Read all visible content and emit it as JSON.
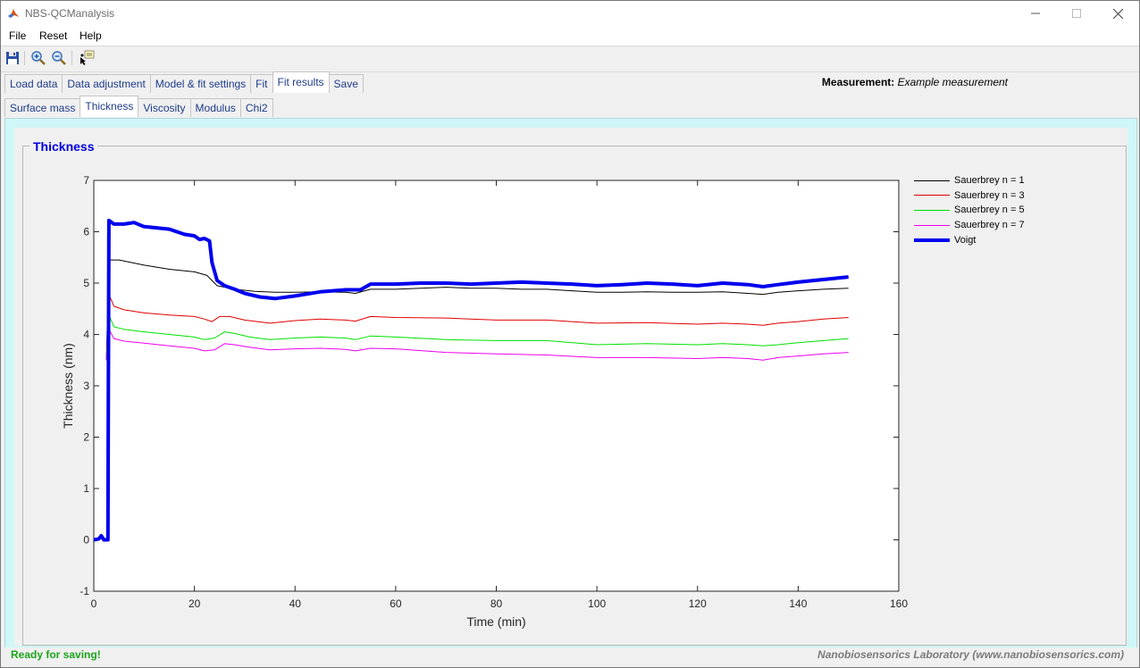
{
  "window": {
    "title": "NBS-QCManalysis",
    "controls": [
      "minimize",
      "maximize",
      "close"
    ]
  },
  "menu": {
    "items": [
      "File",
      "Reset",
      "Help"
    ]
  },
  "toolbar": {
    "buttons": [
      "save-icon",
      "zoom-in-icon",
      "zoom-out-icon",
      "data-cursor-icon"
    ]
  },
  "main_tabs": [
    {
      "label": "Load data",
      "active": false
    },
    {
      "label": "Data adjustment",
      "active": false
    },
    {
      "label": "Model & fit settings",
      "active": false
    },
    {
      "label": "Fit",
      "active": false
    },
    {
      "label": "Fit results",
      "active": true
    },
    {
      "label": "Save",
      "active": false
    }
  ],
  "sub_tabs": [
    {
      "label": "Surface mass",
      "active": false
    },
    {
      "label": "Thickness",
      "active": true
    },
    {
      "label": "Viscosity",
      "active": false
    },
    {
      "label": "Modulus",
      "active": false
    },
    {
      "label": "Chi2",
      "active": false
    }
  ],
  "measurement": {
    "label": "Measurement:",
    "value": "Example measurement"
  },
  "panel": {
    "title": "Thickness"
  },
  "chart_data": {
    "type": "line",
    "xlabel": "Time (min)",
    "ylabel": "Thickness (nm)",
    "xlim": [
      0,
      160
    ],
    "ylim": [
      -1,
      7
    ],
    "xticks": [
      0,
      20,
      40,
      60,
      80,
      100,
      120,
      140,
      160
    ],
    "yticks": [
      -1,
      0,
      1,
      2,
      3,
      4,
      5,
      6,
      7
    ],
    "grid": false,
    "legend_position": "outside-right",
    "series": [
      {
        "name": "Sauerbrey n = 1",
        "color": "#000000",
        "width": 1,
        "points": [
          [
            2.5,
            3.5
          ],
          [
            3,
            5.45
          ],
          [
            5,
            5.45
          ],
          [
            10,
            5.35
          ],
          [
            15,
            5.27
          ],
          [
            20,
            5.22
          ],
          [
            22.5,
            5.15
          ],
          [
            23.5,
            5.05
          ],
          [
            24.5,
            4.95
          ],
          [
            28,
            4.88
          ],
          [
            32,
            4.84
          ],
          [
            36,
            4.82
          ],
          [
            40,
            4.82
          ],
          [
            45,
            4.83
          ],
          [
            50,
            4.82
          ],
          [
            52,
            4.8
          ],
          [
            55,
            4.88
          ],
          [
            60,
            4.88
          ],
          [
            65,
            4.9
          ],
          [
            70,
            4.92
          ],
          [
            75,
            4.9
          ],
          [
            80,
            4.9
          ],
          [
            85,
            4.88
          ],
          [
            90,
            4.88
          ],
          [
            95,
            4.85
          ],
          [
            100,
            4.82
          ],
          [
            105,
            4.82
          ],
          [
            110,
            4.83
          ],
          [
            115,
            4.82
          ],
          [
            120,
            4.82
          ],
          [
            125,
            4.83
          ],
          [
            130,
            4.8
          ],
          [
            133,
            4.78
          ],
          [
            136,
            4.82
          ],
          [
            140,
            4.85
          ],
          [
            145,
            4.88
          ],
          [
            150,
            4.9
          ]
        ]
      },
      {
        "name": "Sauerbrey n = 3",
        "color": "#e00000",
        "width": 1,
        "points": [
          [
            2.5,
            3.5
          ],
          [
            3,
            4.78
          ],
          [
            4,
            4.55
          ],
          [
            6,
            4.48
          ],
          [
            10,
            4.42
          ],
          [
            15,
            4.38
          ],
          [
            20,
            4.35
          ],
          [
            22,
            4.3
          ],
          [
            23.5,
            4.25
          ],
          [
            25,
            4.35
          ],
          [
            27,
            4.35
          ],
          [
            30,
            4.28
          ],
          [
            35,
            4.22
          ],
          [
            40,
            4.27
          ],
          [
            45,
            4.3
          ],
          [
            50,
            4.28
          ],
          [
            52,
            4.26
          ],
          [
            55,
            4.35
          ],
          [
            60,
            4.33
          ],
          [
            70,
            4.32
          ],
          [
            80,
            4.28
          ],
          [
            90,
            4.28
          ],
          [
            100,
            4.22
          ],
          [
            110,
            4.23
          ],
          [
            120,
            4.2
          ],
          [
            125,
            4.22
          ],
          [
            130,
            4.2
          ],
          [
            133,
            4.18
          ],
          [
            136,
            4.22
          ],
          [
            140,
            4.25
          ],
          [
            145,
            4.3
          ],
          [
            150,
            4.33
          ]
        ]
      },
      {
        "name": "Sauerbrey n = 5",
        "color": "#00e000",
        "width": 1,
        "points": [
          [
            2.5,
            3.5
          ],
          [
            3,
            4.38
          ],
          [
            4,
            4.15
          ],
          [
            6,
            4.1
          ],
          [
            10,
            4.05
          ],
          [
            15,
            4.0
          ],
          [
            20,
            3.95
          ],
          [
            22,
            3.9
          ],
          [
            24,
            3.93
          ],
          [
            26,
            4.05
          ],
          [
            28,
            4.02
          ],
          [
            31,
            3.95
          ],
          [
            35,
            3.9
          ],
          [
            40,
            3.93
          ],
          [
            45,
            3.95
          ],
          [
            50,
            3.93
          ],
          [
            52,
            3.9
          ],
          [
            55,
            3.97
          ],
          [
            60,
            3.95
          ],
          [
            70,
            3.9
          ],
          [
            80,
            3.88
          ],
          [
            90,
            3.88
          ],
          [
            100,
            3.8
          ],
          [
            110,
            3.82
          ],
          [
            120,
            3.8
          ],
          [
            125,
            3.82
          ],
          [
            130,
            3.8
          ],
          [
            133,
            3.78
          ],
          [
            136,
            3.8
          ],
          [
            140,
            3.84
          ],
          [
            145,
            3.88
          ],
          [
            150,
            3.92
          ]
        ]
      },
      {
        "name": "Sauerbrey n = 7",
        "color": "#ee00ee",
        "width": 1,
        "points": [
          [
            2.5,
            3.5
          ],
          [
            3,
            4.1
          ],
          [
            4,
            3.92
          ],
          [
            6,
            3.87
          ],
          [
            10,
            3.83
          ],
          [
            15,
            3.78
          ],
          [
            20,
            3.73
          ],
          [
            22,
            3.68
          ],
          [
            24,
            3.7
          ],
          [
            26,
            3.82
          ],
          [
            28,
            3.8
          ],
          [
            31,
            3.75
          ],
          [
            35,
            3.7
          ],
          [
            40,
            3.72
          ],
          [
            45,
            3.73
          ],
          [
            50,
            3.71
          ],
          [
            52,
            3.68
          ],
          [
            55,
            3.73
          ],
          [
            60,
            3.72
          ],
          [
            70,
            3.65
          ],
          [
            80,
            3.62
          ],
          [
            90,
            3.6
          ],
          [
            100,
            3.55
          ],
          [
            110,
            3.55
          ],
          [
            120,
            3.53
          ],
          [
            125,
            3.55
          ],
          [
            130,
            3.53
          ],
          [
            133,
            3.5
          ],
          [
            136,
            3.55
          ],
          [
            140,
            3.58
          ],
          [
            145,
            3.62
          ],
          [
            150,
            3.65
          ]
        ]
      },
      {
        "name": "Voigt",
        "color": "#0000ee",
        "width": 4,
        "points": [
          [
            0,
            0
          ],
          [
            1,
            0.02
          ],
          [
            1.5,
            0.08
          ],
          [
            2,
            0.0
          ],
          [
            2.8,
            0.0
          ],
          [
            2.9,
            3.0
          ],
          [
            3,
            6.22
          ],
          [
            4,
            6.15
          ],
          [
            6,
            6.15
          ],
          [
            8,
            6.18
          ],
          [
            10,
            6.1
          ],
          [
            12,
            6.08
          ],
          [
            15,
            6.05
          ],
          [
            18,
            5.95
          ],
          [
            20,
            5.92
          ],
          [
            21,
            5.85
          ],
          [
            22,
            5.87
          ],
          [
            23,
            5.82
          ],
          [
            23.5,
            5.4
          ],
          [
            24.5,
            5.05
          ],
          [
            26,
            4.95
          ],
          [
            28,
            4.88
          ],
          [
            30,
            4.8
          ],
          [
            33,
            4.73
          ],
          [
            36,
            4.7
          ],
          [
            40,
            4.75
          ],
          [
            45,
            4.83
          ],
          [
            50,
            4.87
          ],
          [
            53,
            4.87
          ],
          [
            55,
            4.98
          ],
          [
            60,
            4.98
          ],
          [
            65,
            5.0
          ],
          [
            70,
            5.0
          ],
          [
            75,
            4.98
          ],
          [
            80,
            5.0
          ],
          [
            85,
            5.02
          ],
          [
            90,
            5.0
          ],
          [
            95,
            4.98
          ],
          [
            100,
            4.95
          ],
          [
            105,
            4.97
          ],
          [
            110,
            5.0
          ],
          [
            115,
            4.98
          ],
          [
            120,
            4.95
          ],
          [
            125,
            5.0
          ],
          [
            130,
            4.97
          ],
          [
            133,
            4.93
          ],
          [
            136,
            4.97
          ],
          [
            140,
            5.02
          ],
          [
            145,
            5.07
          ],
          [
            150,
            5.12
          ]
        ]
      }
    ]
  },
  "status": {
    "left": "Ready for saving!",
    "right": "Nanobiosensorics Laboratory (www.nanobiosensorics.com)"
  }
}
